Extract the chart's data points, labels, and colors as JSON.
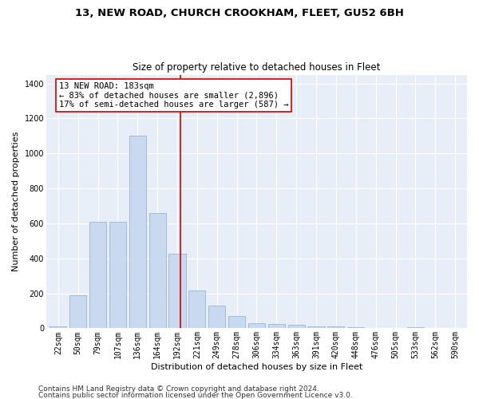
{
  "title1": "13, NEW ROAD, CHURCH CROOKHAM, FLEET, GU52 6BH",
  "title2": "Size of property relative to detached houses in Fleet",
  "xlabel": "Distribution of detached houses by size in Fleet",
  "ylabel": "Number of detached properties",
  "categories": [
    "22sqm",
    "50sqm",
    "79sqm",
    "107sqm",
    "136sqm",
    "164sqm",
    "192sqm",
    "221sqm",
    "249sqm",
    "278sqm",
    "306sqm",
    "334sqm",
    "363sqm",
    "391sqm",
    "420sqm",
    "448sqm",
    "476sqm",
    "505sqm",
    "533sqm",
    "562sqm",
    "590sqm"
  ],
  "values": [
    10,
    190,
    610,
    610,
    1100,
    660,
    425,
    215,
    130,
    70,
    30,
    25,
    20,
    12,
    12,
    5,
    3,
    2,
    5,
    3,
    2
  ],
  "bar_color": "#c8d9f0",
  "bar_edge_color": "#9ab4d8",
  "background_color": "#e8eef8",
  "grid_color": "#ffffff",
  "vline_color": "#cc0000",
  "vline_x_pos": 6.15,
  "annotation_text": "13 NEW ROAD: 183sqm\n← 83% of detached houses are smaller (2,896)\n17% of semi-detached houses are larger (587) →",
  "annotation_box_color": "#ffffff",
  "annotation_box_edge": "#cc0000",
  "footer1": "Contains HM Land Registry data © Crown copyright and database right 2024.",
  "footer2": "Contains public sector information licensed under the Open Government Licence v3.0.",
  "ylim": [
    0,
    1450
  ],
  "yticks": [
    0,
    200,
    400,
    600,
    800,
    1000,
    1200,
    1400
  ],
  "title1_fontsize": 9.5,
  "title2_fontsize": 8.5,
  "xlabel_fontsize": 8,
  "ylabel_fontsize": 8,
  "tick_fontsize": 7,
  "annotation_fontsize": 7.5,
  "footer_fontsize": 6.5
}
